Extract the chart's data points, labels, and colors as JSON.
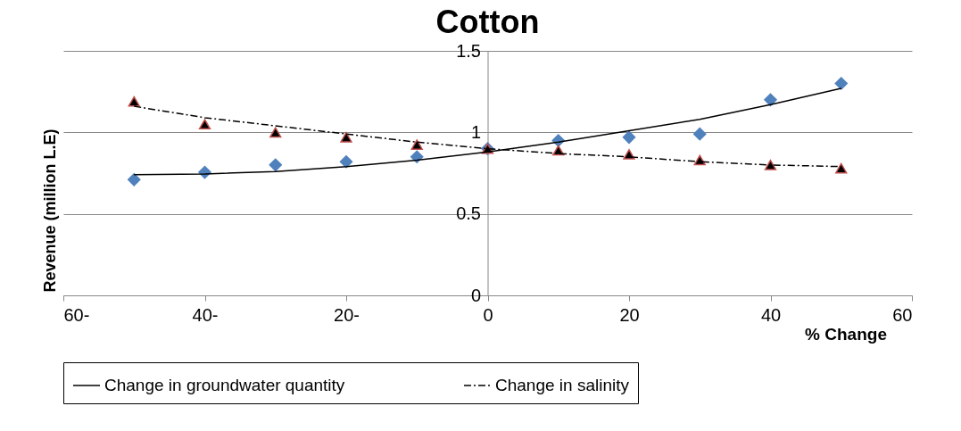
{
  "chart_data": {
    "type": "scatter",
    "title": "Cotton",
    "xlabel": "% Change",
    "ylabel": "Revenue (million L.E)",
    "xlim": [
      -60,
      60
    ],
    "xticks": [
      {
        "value": -60,
        "label": "60-"
      },
      {
        "value": -40,
        "label": "40-"
      },
      {
        "value": -20,
        "label": "20-"
      },
      0,
      20,
      40,
      60
    ],
    "ylim": [
      0,
      1.5
    ],
    "yticks": [
      0,
      0.5,
      1,
      1.5
    ],
    "grid": "y",
    "legend": "bottom",
    "series": [
      {
        "type": "scatter",
        "marker": "diamond",
        "color": "#4f81bd",
        "x": [
          -50,
          -40,
          -30,
          -20,
          -10,
          0,
          10,
          20,
          30,
          40,
          50
        ],
        "values": [
          0.71,
          0.755,
          0.8,
          0.82,
          0.85,
          0.9,
          0.95,
          0.97,
          0.99,
          1.2,
          1.3
        ]
      },
      {
        "type": "scatter",
        "marker": "triangle",
        "color": "#000000",
        "x": [
          -50,
          -40,
          -30,
          -20,
          -10,
          0,
          10,
          20,
          30,
          40,
          50
        ],
        "values": [
          1.19,
          1.05,
          1.0,
          0.97,
          0.925,
          0.9,
          0.89,
          0.865,
          0.83,
          0.8,
          0.78
        ]
      },
      {
        "type": "line",
        "name": "Change in groundwater quantity",
        "line_style": "solid",
        "color": "#000000",
        "x": [
          -50,
          -40,
          -30,
          -20,
          -10,
          0,
          10,
          20,
          30,
          40,
          50
        ],
        "values": [
          0.74,
          0.745,
          0.76,
          0.79,
          0.83,
          0.88,
          0.94,
          1.01,
          1.08,
          1.17,
          1.27
        ]
      },
      {
        "type": "line",
        "name": "Change in salinity",
        "line_style": "dashdot",
        "color": "#000000",
        "x": [
          -50,
          -40,
          -30,
          -20,
          -10,
          0,
          10,
          20,
          30,
          40,
          50
        ],
        "values": [
          1.16,
          1.09,
          1.04,
          0.99,
          0.94,
          0.9,
          0.87,
          0.85,
          0.82,
          0.8,
          0.79
        ]
      }
    ]
  }
}
